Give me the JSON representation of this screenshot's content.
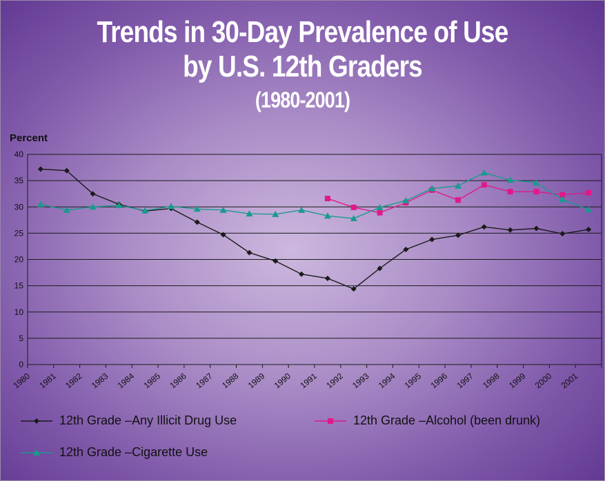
{
  "title_line1": "Trends in 30-Day Prevalence of Use",
  "title_line2": "by U.S. 12th Graders",
  "title_line3": "(1980-2001)",
  "chart_data": {
    "type": "line",
    "title": "Trends in 30-Day Prevalence of Use by U.S. 12th Graders (1980-2001)",
    "ylabel": "Percent",
    "xlabel": "",
    "ylim": [
      0,
      40
    ],
    "yticks": [
      0,
      5,
      10,
      15,
      20,
      25,
      30,
      35,
      40
    ],
    "grid": "horizontal",
    "legend_position": "bottom",
    "categories": [
      "1980",
      "1981",
      "1982",
      "1983",
      "1984",
      "1985",
      "1986",
      "1987",
      "1988",
      "1989",
      "1990",
      "1991",
      "1992",
      "1993",
      "1994",
      "1995",
      "1996",
      "1997",
      "1998",
      "1999",
      "2000",
      "2001"
    ],
    "series": [
      {
        "name": "12th Grade –Any Illicit Drug Use",
        "color": "#1a1a1a",
        "marker": "diamond",
        "values": [
          37.2,
          36.9,
          32.5,
          30.5,
          29.2,
          29.7,
          27.1,
          24.7,
          21.3,
          19.7,
          17.2,
          16.4,
          14.4,
          18.3,
          21.9,
          23.8,
          24.6,
          26.2,
          25.6,
          25.9,
          24.9,
          25.7
        ]
      },
      {
        "name": "12th Grade –Alcohol (been drunk)",
        "color": "#e0198a",
        "marker": "square",
        "values": [
          null,
          null,
          null,
          null,
          null,
          null,
          null,
          null,
          null,
          null,
          null,
          31.6,
          29.9,
          28.9,
          30.8,
          33.2,
          31.3,
          34.2,
          32.9,
          32.9,
          32.3,
          32.7
        ]
      },
      {
        "name": "12th Grade –Cigarette Use",
        "color": "#1a9a8e",
        "marker": "triangle",
        "values": [
          30.5,
          29.4,
          30.0,
          30.3,
          29.3,
          30.1,
          29.6,
          29.4,
          28.7,
          28.6,
          29.4,
          28.3,
          27.8,
          29.9,
          31.2,
          33.5,
          34.0,
          36.5,
          35.1,
          34.6,
          31.4,
          29.5
        ]
      }
    ]
  }
}
